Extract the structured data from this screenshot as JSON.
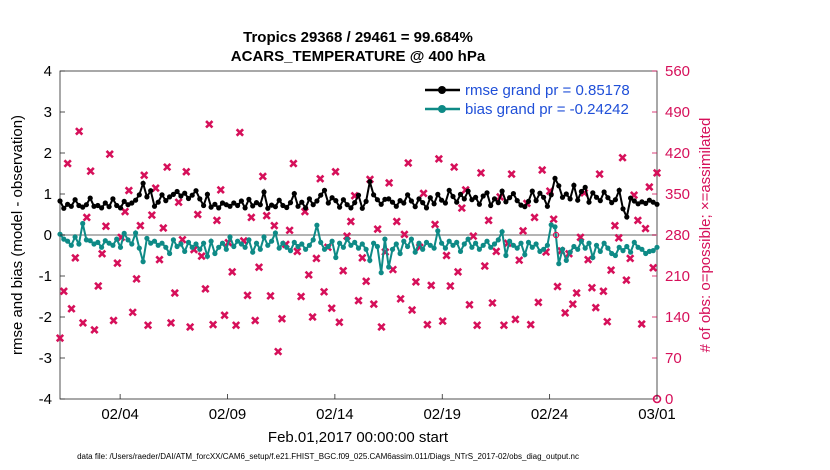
{
  "chart_data": {
    "type": "line",
    "title": "Tropics 29368 / 29461 = 99.684%",
    "subtitle": "ACARS_TEMPERATURE @ 400 hPa",
    "xlabel": "Feb.01,2017 00:00:00 start",
    "ylabel": "rmse and bias (model - observation)",
    "ylabel_right": "# of obs: o=possible; ×=assimilated",
    "footer": "data file: /Users/raeder/DAI/ATM_forcXX/CAM6_setup/f.e21.FHIST_BGC.f09_025.CAM6assim.011/Diags_NTrS_2017-02/obs_diag_output.nc",
    "x_ticks": [
      "02/04",
      "02/09",
      "02/14",
      "02/19",
      "02/24",
      "03/01"
    ],
    "x_tick_days": [
      3,
      8,
      13,
      18,
      23,
      28
    ],
    "xlim_days": [
      0.2,
      28
    ],
    "ylim": [
      -4,
      4
    ],
    "y_ticks": [
      "-4",
      "-3",
      "-2",
      "-1",
      "0",
      "1",
      "2",
      "3",
      "4"
    ],
    "ylim_right": [
      0,
      560
    ],
    "y_ticks_right": [
      "0",
      "70",
      "140",
      "210",
      "280",
      "350",
      "420",
      "490",
      "560"
    ],
    "grid": false,
    "legend_position": "top-right",
    "colors": {
      "rmse": "#000000",
      "bias": "#0e8a86",
      "obs": "#d6105a",
      "zero_line": "#b4b4b4",
      "legend_text": "#1f4fd8"
    },
    "series": [
      {
        "name": "rmse grand pr = 0.85178",
        "values": [
          0.83,
          0.65,
          0.75,
          0.7,
          0.86,
          0.72,
          0.68,
          0.74,
          0.9,
          0.7,
          0.72,
          0.66,
          0.78,
          0.69,
          0.88,
          0.72,
          0.66,
          0.82,
          0.74,
          0.78,
          0.85,
          0.98,
          1.26,
          0.93,
          1.08,
          0.7,
          0.8,
          0.98,
          0.84,
          0.93,
          0.99,
          1.06,
          0.95,
          1.02,
          0.89,
          0.97,
          1.08,
          0.88,
          0.72,
          0.99,
          0.68,
          0.75,
          0.66,
          0.78,
          0.74,
          0.7,
          0.78,
          0.72,
          0.83,
          0.66,
          0.87,
          0.71,
          0.79,
          0.74,
          1.05,
          0.65,
          0.73,
          0.69,
          0.85,
          0.72,
          0.67,
          0.79,
          1.01,
          0.7,
          0.8,
          0.66,
          0.88,
          0.74,
          0.83,
          0.97,
          1.09,
          0.78,
          0.91,
          0.84,
          0.68,
          0.86,
          0.74,
          0.66,
          0.79,
          0.97,
          0.65,
          0.82,
          1.3,
          0.98,
          0.86,
          0.75,
          0.87,
          0.88,
          0.8,
          0.7,
          0.84,
          0.78,
          0.98,
          0.83,
          0.69,
          0.88,
          0.79,
          0.66,
          0.91,
          0.76,
          0.99,
          0.85,
          0.78,
          1.09,
          0.94,
          0.8,
          0.99,
          0.88,
          1.07,
          0.86,
          0.92,
          0.75,
          0.95,
          1.03,
          0.72,
          0.88,
          0.79,
          1.07,
          0.81,
          0.91,
          1.01,
          0.84,
          0.73,
          0.69,
          0.82,
          1.07,
          0.84,
          1.02,
          0.92,
          0.7,
          0.98,
          1.38,
          1.2,
          0.92,
          1.0,
          0.88,
          1.21,
          0.85,
          1.06,
          1.16,
          0.8,
          1.03,
          0.92,
          0.84,
          1.05,
          0.91,
          0.79,
          0.86,
          1.09,
          0.64,
          0.44,
          0.9,
          0.83,
          0.76,
          0.81,
          0.77,
          0.85,
          0.8,
          0.75
        ]
      },
      {
        "name": "bias grand pr = -0.24242",
        "values": [
          0.02,
          -0.1,
          -0.15,
          -0.25,
          -0.05,
          -0.22,
          0.28,
          -0.12,
          -0.14,
          -0.22,
          -0.18,
          -0.3,
          -0.14,
          -0.2,
          -0.25,
          -0.1,
          -0.3,
          0.04,
          -0.12,
          -0.22,
          0.05,
          -0.32,
          -0.65,
          -0.08,
          -0.2,
          -0.15,
          -0.25,
          -0.2,
          -0.3,
          -0.45,
          -0.12,
          -0.28,
          -0.22,
          -0.4,
          -0.18,
          -0.3,
          -0.22,
          -0.35,
          -0.2,
          -0.52,
          -0.15,
          -0.45,
          -0.3,
          -0.2,
          -0.35,
          -0.05,
          -0.28,
          -0.15,
          -0.22,
          -0.3,
          -0.12,
          -0.42,
          -0.2,
          -0.35,
          -0.05,
          -0.25,
          -0.15,
          0.05,
          -0.32,
          -0.2,
          -0.3,
          -0.38,
          -0.18,
          -0.28,
          -0.22,
          -0.35,
          -0.25,
          -0.12,
          0.24,
          -0.18,
          -0.35,
          -0.28,
          -0.15,
          -0.55,
          -0.2,
          -0.3,
          -0.1,
          -0.25,
          -0.18,
          -0.32,
          -0.22,
          -0.35,
          -0.62,
          -0.2,
          -0.28,
          -0.92,
          -0.1,
          -0.78,
          -0.35,
          -0.22,
          -0.45,
          -0.15,
          -0.28,
          -0.1,
          -0.42,
          -0.2,
          -0.35,
          -0.18,
          -0.25,
          -0.32,
          0.1,
          -0.2,
          -0.32,
          -0.15,
          -0.25,
          -0.18,
          -0.4,
          -0.22,
          -0.1,
          -0.3,
          -0.2,
          -0.35,
          -0.25,
          -0.15,
          -0.3,
          -0.22,
          -0.12,
          0.08,
          -0.5,
          -0.15,
          -0.25,
          -0.32,
          -0.2,
          -0.48,
          -0.18,
          -0.3,
          -0.22,
          -0.4,
          -0.35,
          -0.25,
          0.25,
          0.2,
          -0.7,
          -0.35,
          -0.62,
          -0.42,
          -0.28,
          -0.35,
          -0.15,
          -0.32,
          -0.2,
          -0.55,
          -0.25,
          -0.4,
          -0.2,
          -0.32,
          -0.45,
          -0.5,
          -0.3,
          -0.38,
          -0.28,
          -0.42,
          -0.18,
          -0.3,
          -0.35,
          -0.45,
          -0.4,
          -0.38,
          -0.3
        ]
      },
      {
        "name": "obs_assimilated",
        "values": [
          104,
          184,
          402,
          154,
          241,
          457,
          130,
          310,
          389,
          118,
          193,
          248,
          295,
          418,
          134,
          232,
          276,
          320,
          356,
          148,
          205,
          296,
          382,
          126,
          314,
          360,
          238,
          292,
          396,
          130,
          181,
          336,
          272,
          388,
          123,
          255,
          315,
          244,
          188,
          469,
          127,
          305,
          357,
          143,
          267,
          217,
          126,
          455,
          270,
          177,
          310,
          134,
          225,
          380,
          313,
          176,
          296,
          81,
          137,
          264,
          288,
          402,
          252,
          175,
          320,
          212,
          140,
          240,
          376,
          183,
          259,
          155,
          388,
          131,
          219,
          278,
          303,
          347,
          168,
          241,
          201,
          375,
          162,
          290,
          123,
          251,
          369,
          221,
          303,
          171,
          281,
          403,
          152,
          200,
          259,
          351,
          127,
          194,
          298,
          410,
          133,
          245,
          193,
          396,
          217,
          326,
          357,
          161,
          278,
          126,
          386,
          227,
          305,
          164,
          252,
          345,
          126,
          266,
          384,
          136,
          237,
          287,
          334,
          127,
          310,
          165,
          391,
          251,
          355,
          307,
          192,
          253,
          147,
          248,
          162,
          181,
          276,
          352,
          238,
          190,
          156,
          384,
          184,
          132,
          220,
          296,
          275,
          412,
          203,
          240,
          348,
          305,
          128,
          291,
          362,
          224,
          386
        ]
      }
    ]
  }
}
